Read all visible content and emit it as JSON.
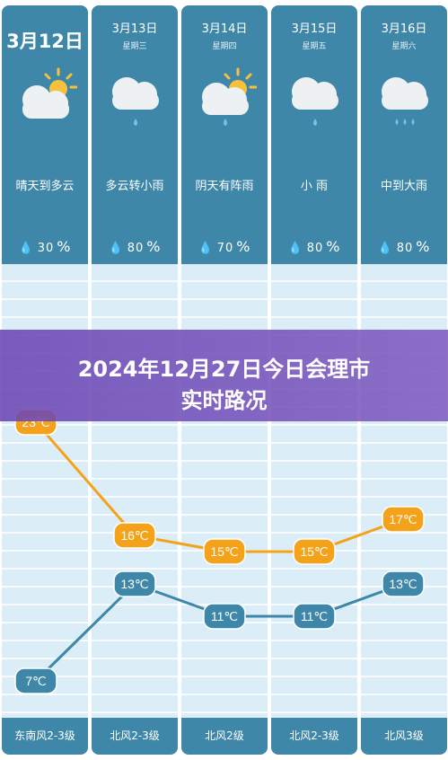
{
  "days": [
    {
      "date": "3月12日",
      "weekday": "",
      "condition": "晴天到多云",
      "humidity": "30",
      "wind": "东南风2-3级",
      "icon": "partly-cloudy-sun-icon"
    },
    {
      "date": "3月13日",
      "weekday": "星期三",
      "condition": "多云转小雨",
      "humidity": "80",
      "wind": "北风2-3级",
      "icon": "cloud-rain-light-icon"
    },
    {
      "date": "3月14日",
      "weekday": "星期四",
      "condition": "阴天有阵雨",
      "humidity": "70",
      "wind": "北风2级",
      "icon": "sun-cloud-shower-icon"
    },
    {
      "date": "3月15日",
      "weekday": "星期五",
      "condition": "小 雨",
      "humidity": "80",
      "wind": "北风2-3级",
      "icon": "cloud-rain-light-icon"
    },
    {
      "date": "3月16日",
      "weekday": "星期六",
      "condition": "中到大雨",
      "humidity": "80",
      "wind": "北风3级",
      "icon": "cloud-rain-heavy-icon"
    }
  ],
  "humidity_unit": "%",
  "title_line1": "2024年12月27日今日会理市",
  "title_line2": "实时路况",
  "chart_data": {
    "type": "line",
    "categories": [
      "3月12日",
      "3月13日",
      "3月14日",
      "3月15日",
      "3月16日"
    ],
    "series": [
      {
        "values": [
          23,
          16,
          15,
          15,
          17
        ],
        "labels": [
          "23℃",
          "16℃",
          "15℃",
          "15℃",
          "17℃"
        ],
        "color": "#f5a21b"
      },
      {
        "values": [
          7,
          13,
          11,
          11,
          13
        ],
        "labels": [
          "7℃",
          "13℃",
          "11℃",
          "11℃",
          "13℃"
        ],
        "color": "#3f87a8"
      }
    ]
  },
  "colors": {
    "panel": "#3f87a8",
    "high": "#f5a21b",
    "low": "#3f87a8",
    "banner": "#6b46b4"
  }
}
